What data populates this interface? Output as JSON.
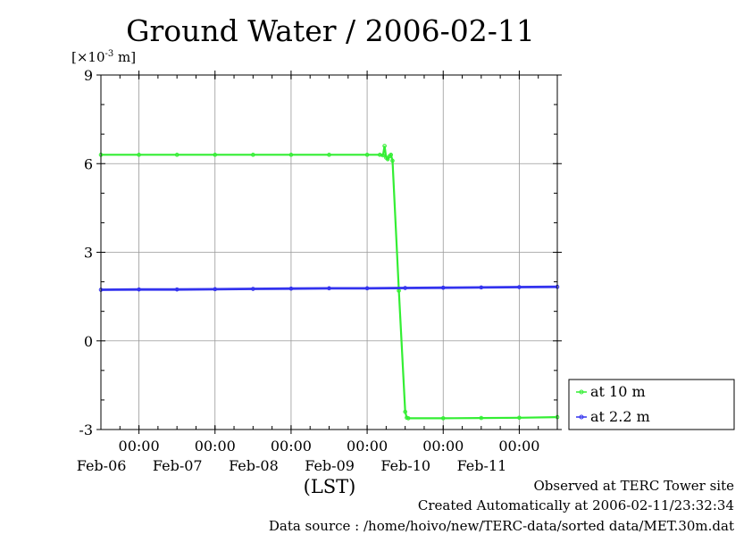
{
  "chart_data": {
    "type": "line",
    "title": "Ground Water / 2006-02-11",
    "ylabel_unit": "[×10",
    "ylabel_exp": "-3",
    "ylabel_tail": " m]",
    "xlabel": "(LST)",
    "ylim": [
      -3,
      9
    ],
    "yticks": [
      "9",
      "6",
      "3",
      "0",
      "-3"
    ],
    "xlim": [
      "2006-02-05T12:00",
      "2006-02-11T12:00"
    ],
    "xticks": [
      {
        "time": "2006-02-06T00:00",
        "hour": "00:00",
        "date": "Feb-06"
      },
      {
        "time": "2006-02-07T00:00",
        "hour": "00:00",
        "date": "Feb-07"
      },
      {
        "time": "2006-02-08T00:00",
        "hour": "00:00",
        "date": "Feb-08"
      },
      {
        "time": "2006-02-09T00:00",
        "hour": "00:00",
        "date": "Feb-09"
      },
      {
        "time": "2006-02-10T00:00",
        "hour": "00:00",
        "date": "Feb-10"
      },
      {
        "time": "2006-02-11T00:00",
        "hour": "00:00",
        "date": "Feb-11"
      }
    ],
    "grid": true,
    "legend_position": "right-bottom",
    "series": [
      {
        "name": "at 10 m",
        "color": "#33ee33",
        "points": [
          [
            "2006-02-05T12:00",
            6.3
          ],
          [
            "2006-02-06T00:00",
            6.3
          ],
          [
            "2006-02-06T12:00",
            6.3
          ],
          [
            "2006-02-07T00:00",
            6.3
          ],
          [
            "2006-02-07T12:00",
            6.3
          ],
          [
            "2006-02-08T00:00",
            6.3
          ],
          [
            "2006-02-08T12:00",
            6.3
          ],
          [
            "2006-02-09T00:00",
            6.3
          ],
          [
            "2006-02-09T04:00",
            6.3
          ],
          [
            "2006-02-09T05:00",
            6.28
          ],
          [
            "2006-02-09T05:30",
            6.6
          ],
          [
            "2006-02-09T06:00",
            6.2
          ],
          [
            "2006-02-09T06:30",
            6.15
          ],
          [
            "2006-02-09T07:00",
            6.25
          ],
          [
            "2006-02-09T07:30",
            6.3
          ],
          [
            "2006-02-09T08:00",
            6.1
          ],
          [
            "2006-02-09T10:00",
            1.7
          ],
          [
            "2006-02-09T12:00",
            -2.4
          ],
          [
            "2006-02-09T12:30",
            -2.6
          ],
          [
            "2006-02-09T13:00",
            -2.62
          ],
          [
            "2006-02-10T00:00",
            -2.62
          ],
          [
            "2006-02-10T12:00",
            -2.61
          ],
          [
            "2006-02-11T00:00",
            -2.6
          ],
          [
            "2006-02-11T12:00",
            -2.58
          ]
        ]
      },
      {
        "name": "at 2.2 m",
        "color": "#3333ee",
        "points": [
          [
            "2006-02-05T12:00",
            1.73
          ],
          [
            "2006-02-06T00:00",
            1.74
          ],
          [
            "2006-02-06T12:00",
            1.74
          ],
          [
            "2006-02-07T00:00",
            1.75
          ],
          [
            "2006-02-07T12:00",
            1.76
          ],
          [
            "2006-02-08T00:00",
            1.77
          ],
          [
            "2006-02-08T12:00",
            1.78
          ],
          [
            "2006-02-09T00:00",
            1.78
          ],
          [
            "2006-02-09T12:00",
            1.79
          ],
          [
            "2006-02-10T00:00",
            1.8
          ],
          [
            "2006-02-10T12:00",
            1.81
          ],
          [
            "2006-02-11T00:00",
            1.82
          ],
          [
            "2006-02-11T12:00",
            1.83
          ]
        ]
      }
    ]
  },
  "footer": {
    "observed": "Observed at TERC Tower site",
    "created": "Created Automatically at 2006-02-11/23:32:34",
    "source": "Data source : /home/hoivo/new/TERC-data/sorted  data/MET.30m.dat"
  }
}
